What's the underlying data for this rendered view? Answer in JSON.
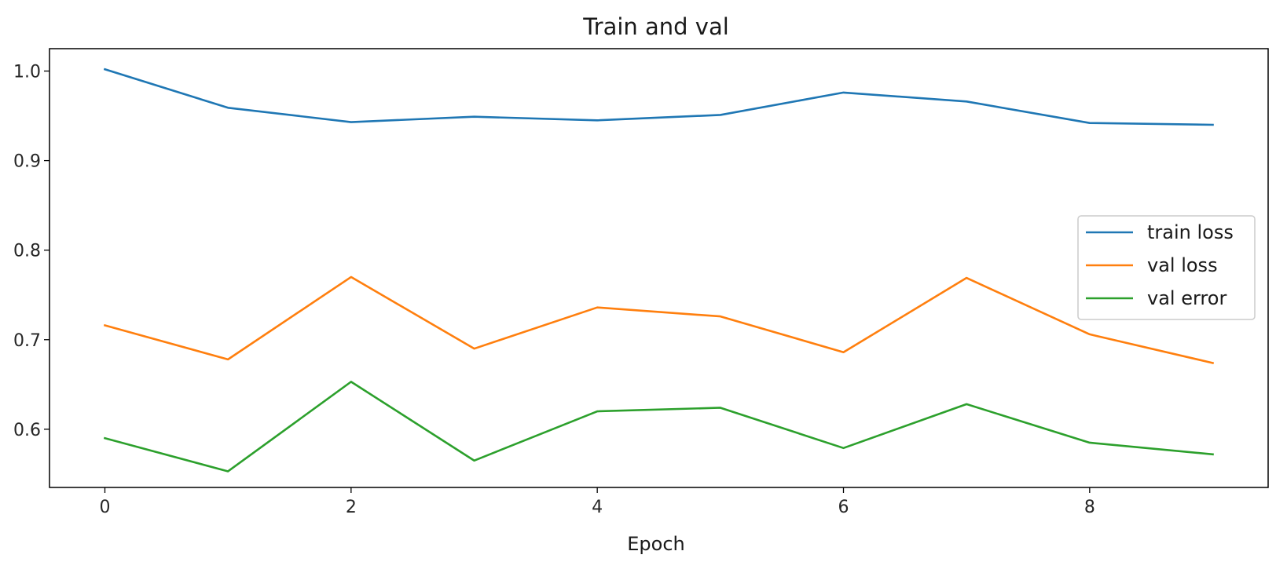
{
  "chart_data": {
    "type": "line",
    "title": "Train and val",
    "xlabel": "Epoch",
    "ylabel": "",
    "x": [
      0,
      1,
      2,
      3,
      4,
      5,
      6,
      7,
      8,
      9
    ],
    "xlim": [
      -0.45,
      9.45
    ],
    "ylim": [
      0.535,
      1.025
    ],
    "xticks": [
      0,
      2,
      4,
      6,
      8
    ],
    "yticks": [
      0.6,
      0.7,
      0.8,
      0.9,
      1.0
    ],
    "grid": false,
    "legend_position": "center-right",
    "series": [
      {
        "name": "train loss",
        "color": "#1f77b4",
        "values": [
          1.002,
          0.959,
          0.943,
          0.949,
          0.945,
          0.951,
          0.976,
          0.966,
          0.942,
          0.94
        ]
      },
      {
        "name": "val loss",
        "color": "#ff7f0e",
        "values": [
          0.716,
          0.678,
          0.77,
          0.69,
          0.736,
          0.726,
          0.686,
          0.769,
          0.706,
          0.674
        ]
      },
      {
        "name": "val error",
        "color": "#2ca02c",
        "values": [
          0.59,
          0.553,
          0.653,
          0.565,
          0.62,
          0.624,
          0.579,
          0.628,
          0.585,
          0.572
        ]
      }
    ]
  }
}
